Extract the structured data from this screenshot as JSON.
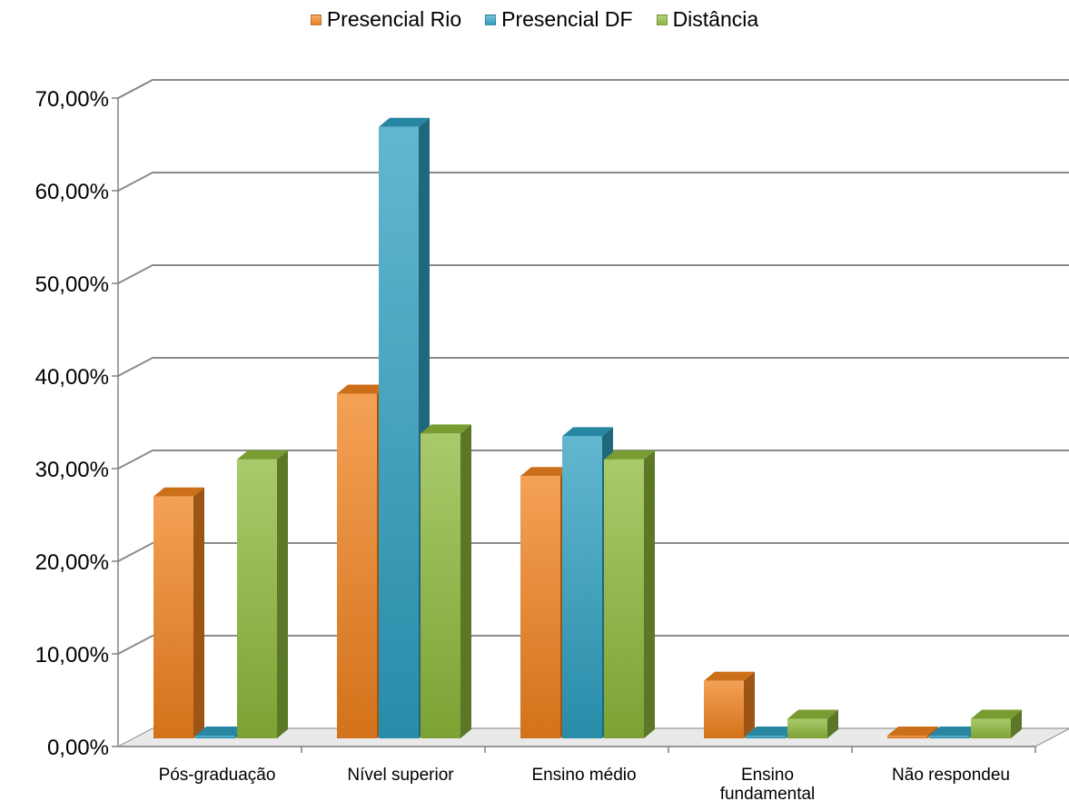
{
  "chart_data": {
    "type": "bar",
    "categories": [
      "Pós-graduação",
      "Nível superior",
      "Ensino médio",
      "Ensino fundamental",
      "Não respondeu"
    ],
    "category_lines": [
      [
        "Pós-graduação"
      ],
      [
        "Nível superior"
      ],
      [
        "Ensino médio"
      ],
      [
        "Ensino",
        "fundamental"
      ],
      [
        "Não respondeu"
      ]
    ],
    "series": [
      {
        "name": "Presencial Rio",
        "values": [
          26.5,
          37.6,
          28.7,
          6.6,
          0.0
        ],
        "color": "#F0821E"
      },
      {
        "name": "Presencial DF",
        "values": [
          0.0,
          66.4,
          33.0,
          0.0,
          0.0
        ],
        "color": "#2E9FC0"
      },
      {
        "name": "Distância",
        "values": [
          30.5,
          33.3,
          30.5,
          2.5,
          2.5
        ],
        "color": "#8DB83A"
      }
    ],
    "ylim": [
      0,
      70
    ],
    "yticks": [
      "0,00%",
      "10,00%",
      "20,00%",
      "30,00%",
      "40,00%",
      "50,00%",
      "60,00%",
      "70,00%"
    ],
    "title": "",
    "xlabel": "",
    "ylabel": "",
    "grid": true,
    "legend_position": "top"
  }
}
